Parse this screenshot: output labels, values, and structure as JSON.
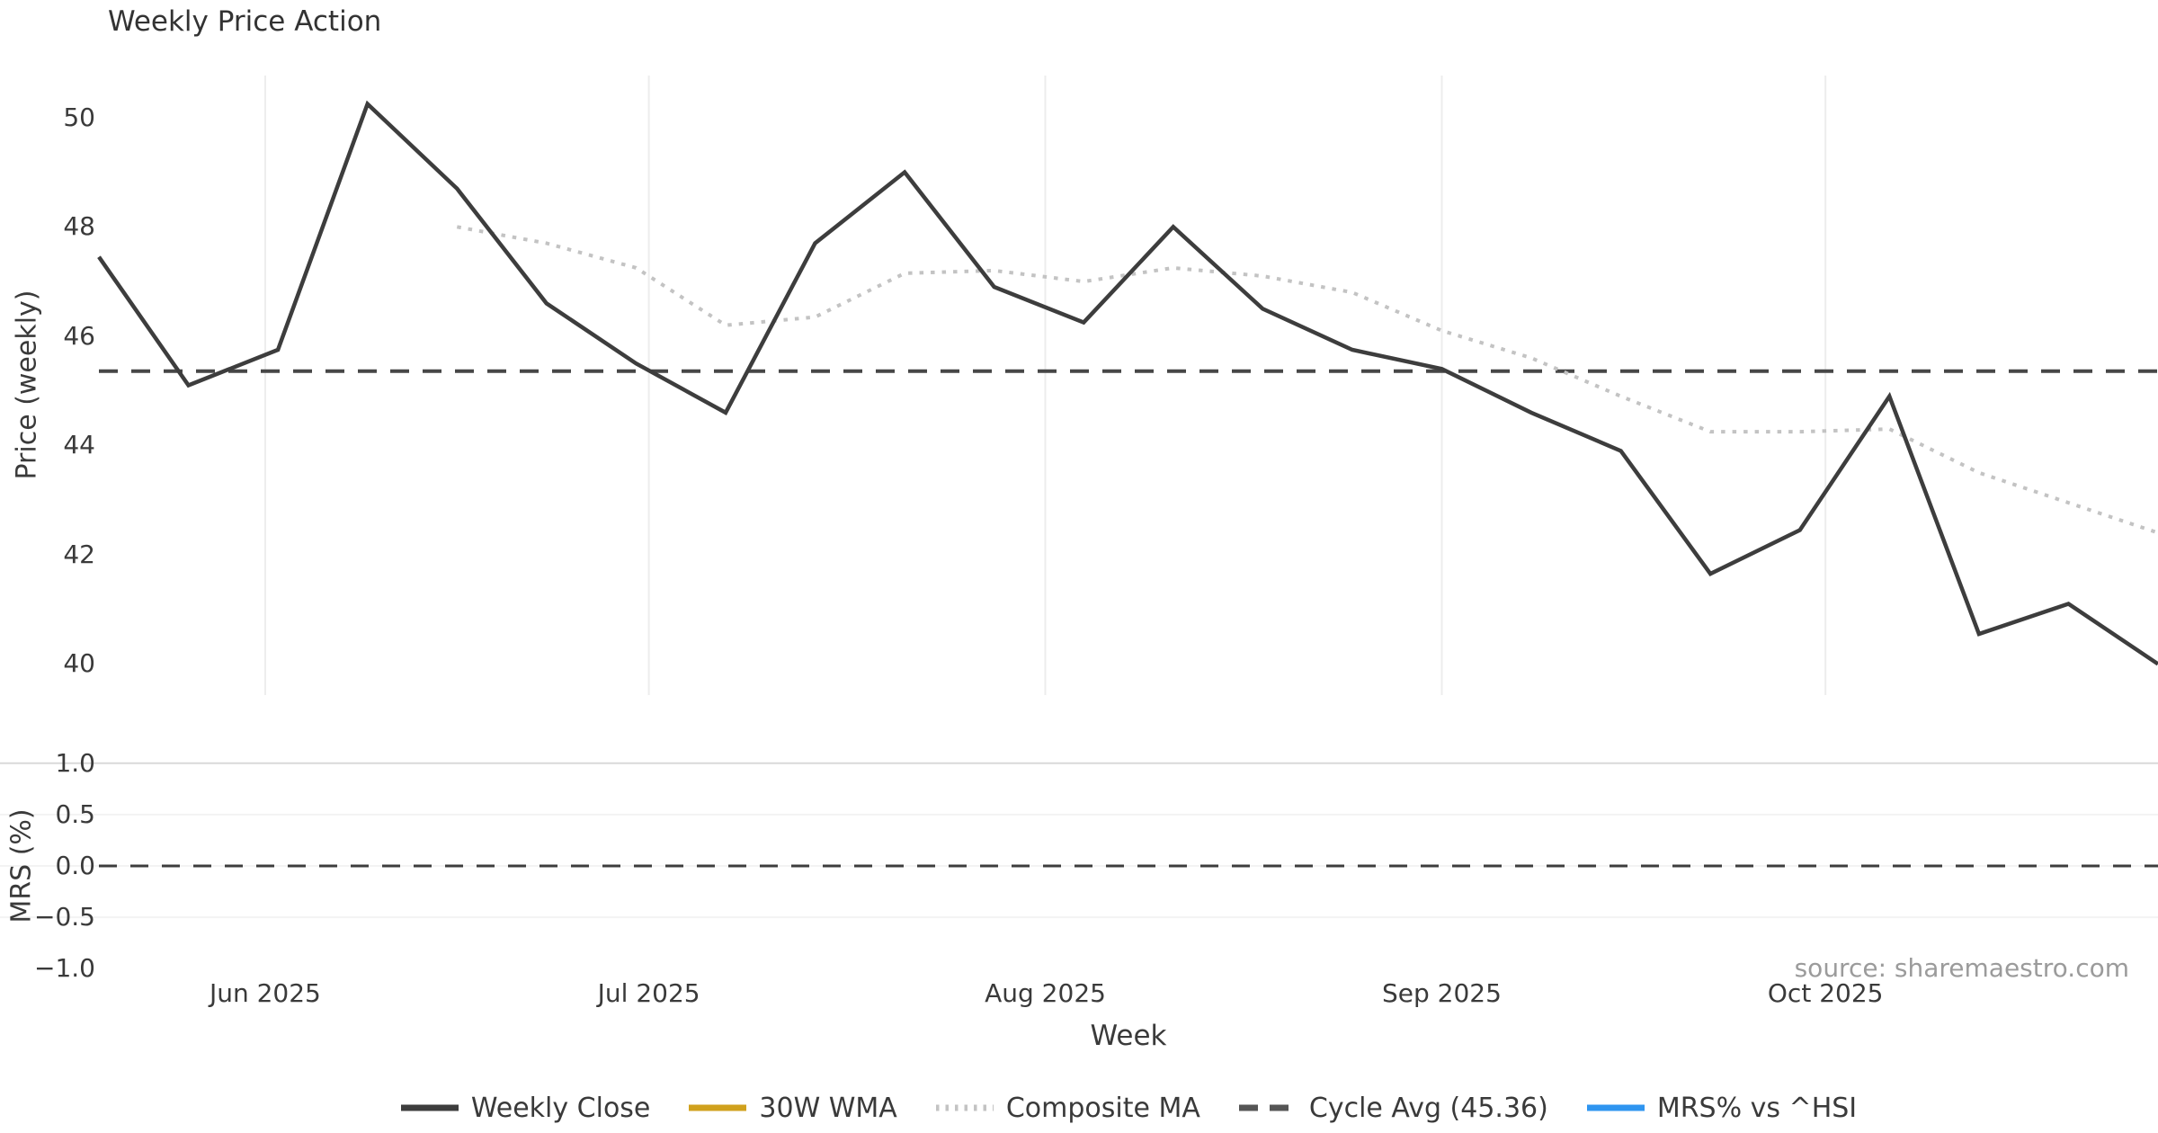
{
  "title": "Weekly Price Action",
  "xlabel": "Week",
  "source_note": "source: sharemaestro.com",
  "price_axis": {
    "label": "Price (weekly)",
    "ticks": [
      "40",
      "42",
      "44",
      "46",
      "48",
      "50"
    ]
  },
  "mrs_axis": {
    "label": "MRS (%)",
    "ticks": [
      "1.0",
      "0.5",
      "0.0",
      "−0.5",
      "−1.0"
    ]
  },
  "x_ticks": [
    "Jun 2025",
    "Jul 2025",
    "Aug 2025",
    "Sep 2025",
    "Oct 2025"
  ],
  "legend": [
    {
      "label": "Weekly Close",
      "color": "#3d3d3d",
      "style": "solid"
    },
    {
      "label": "30W WMA",
      "color": "#d0a11d",
      "style": "solid"
    },
    {
      "label": "Composite MA",
      "color": "#c3c3c3",
      "style": "dotted"
    },
    {
      "label": "Cycle Avg (45.36)",
      "color": "#555555",
      "style": "dashed"
    },
    {
      "label": "MRS% vs ^HSI",
      "color": "#2f95f0",
      "style": "solid"
    }
  ],
  "colors": {
    "weekly_close": "#3d3d3d",
    "wma_30w": "#d0a11d",
    "composite_ma": "#c3c3c3",
    "cycle_avg": "#474747",
    "mrs_line": "#2f95f0",
    "month_gridline": "#ededed",
    "mrs_grid_major": "#d9d9d9",
    "mrs_grid_minor": "#f3f3f3",
    "mrs_zero_line": "#3d3d3d"
  },
  "chart_data": [
    {
      "panel": "price",
      "type": "line",
      "title": "Weekly Price Action",
      "xlabel": "Week",
      "ylabel": "Price (weekly)",
      "x": [
        "2025-05-19",
        "2025-05-26",
        "2025-06-02",
        "2025-06-09",
        "2025-06-16",
        "2025-06-23",
        "2025-06-30",
        "2025-07-07",
        "2025-07-14",
        "2025-07-21",
        "2025-07-28",
        "2025-08-04",
        "2025-08-11",
        "2025-08-18",
        "2025-08-25",
        "2025-09-01",
        "2025-09-08",
        "2025-09-15",
        "2025-09-22",
        "2025-09-29",
        "2025-10-06",
        "2025-10-13",
        "2025-10-20",
        "2025-10-27"
      ],
      "xtick_labels": [
        "Jun 2025",
        "Jul 2025",
        "Aug 2025",
        "Sep 2025",
        "Oct 2025"
      ],
      "month_tick_days": [
        13,
        43,
        74,
        105,
        135
      ],
      "ylim": [
        39.43,
        50.77
      ],
      "yticks": [
        40,
        42,
        44,
        46,
        48,
        50
      ],
      "grid": "x-only",
      "legend_position": "bottom-center",
      "series": [
        {
          "name": "Weekly Close",
          "style": "solid",
          "values": [
            47.45,
            45.1,
            45.75,
            50.25,
            48.7,
            46.6,
            45.5,
            44.6,
            47.7,
            49.0,
            46.9,
            46.25,
            48.0,
            46.5,
            45.75,
            45.4,
            44.6,
            43.9,
            41.65,
            42.45,
            44.9,
            40.55,
            41.1,
            40.0
          ]
        },
        {
          "name": "Composite MA",
          "style": "dotted",
          "values": [
            null,
            null,
            null,
            null,
            48.0,
            47.7,
            47.25,
            46.2,
            46.35,
            47.15,
            47.2,
            47.0,
            47.25,
            47.1,
            46.8,
            46.1,
            45.6,
            44.9,
            44.25,
            44.25,
            44.3,
            43.5,
            42.95,
            42.4
          ]
        },
        {
          "name": "30W WMA",
          "style": "solid",
          "values": []
        },
        {
          "name": "Cycle Avg",
          "style": "dashed",
          "hline": 45.36
        }
      ]
    },
    {
      "panel": "mrs",
      "type": "line",
      "ylabel": "MRS (%)",
      "ylim": [
        -1.05,
        1.05
      ],
      "yticks": [
        1.0,
        0.5,
        0.0,
        -0.5,
        -1.0
      ],
      "zero_line": 0.0,
      "series": [
        {
          "name": "MRS% vs ^HSI",
          "style": "solid",
          "values": []
        }
      ]
    }
  ]
}
